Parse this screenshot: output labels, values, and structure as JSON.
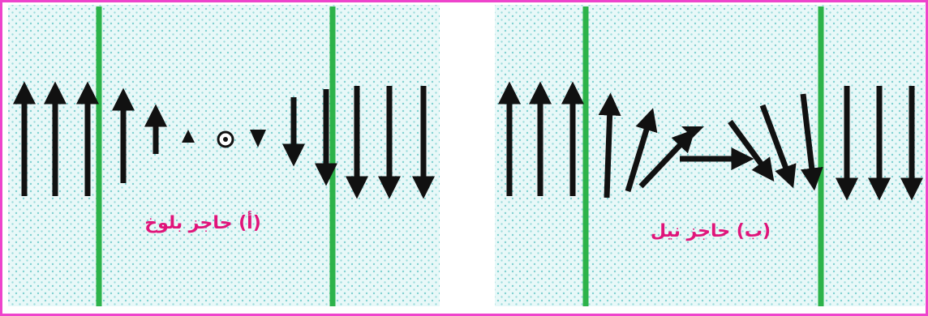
{
  "panels": [
    {
      "label": "(أ) حاجز بلوخ"
    },
    {
      "label": "(ب) حاجز نيل"
    }
  ]
}
